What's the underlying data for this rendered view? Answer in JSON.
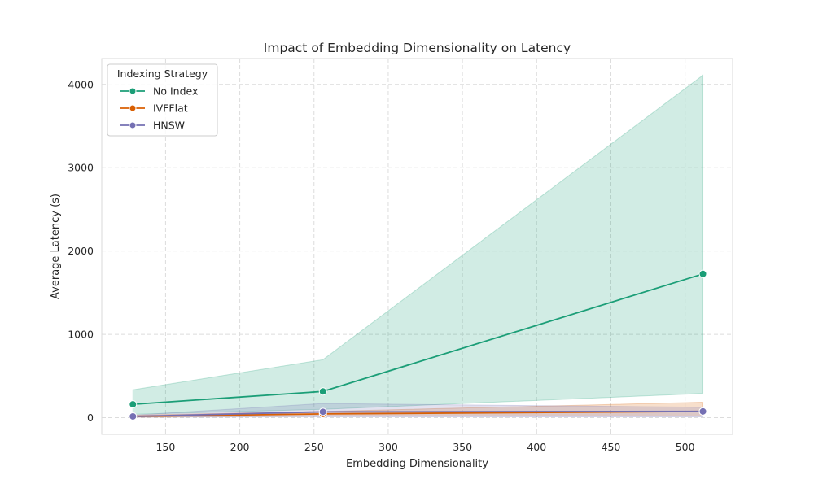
{
  "chart_data": {
    "type": "line",
    "title": "Impact of Embedding Dimensionality on Latency",
    "xlabel": "Embedding Dimensionality",
    "ylabel": "Average Latency (s)",
    "xlim": [
      107,
      532
    ],
    "ylim": [
      -200,
      4310
    ],
    "x_ticks": [
      150,
      200,
      250,
      300,
      350,
      400,
      450,
      500
    ],
    "y_ticks": [
      0,
      1000,
      2000,
      3000,
      4000
    ],
    "grid": true,
    "legend": {
      "title": "Indexing Strategy",
      "placement": "top-left"
    },
    "x": [
      128,
      256,
      512
    ],
    "series": [
      {
        "name": "No Index",
        "color": "#1b9e77",
        "values": [
          160,
          315,
          1725
        ],
        "band_lower": [
          40,
          100,
          290
        ],
        "band_upper": [
          335,
          695,
          4110
        ]
      },
      {
        "name": "IVFFlat",
        "color": "#d95f02",
        "values": [
          15,
          45,
          75
        ],
        "band_lower": [
          5,
          20,
          20
        ],
        "band_upper": [
          30,
          75,
          185
        ]
      },
      {
        "name": "HNSW",
        "color": "#7570b3",
        "values": [
          15,
          70,
          75
        ],
        "band_lower": [
          5,
          10,
          10
        ],
        "band_upper": [
          30,
          170,
          125
        ]
      }
    ]
  }
}
